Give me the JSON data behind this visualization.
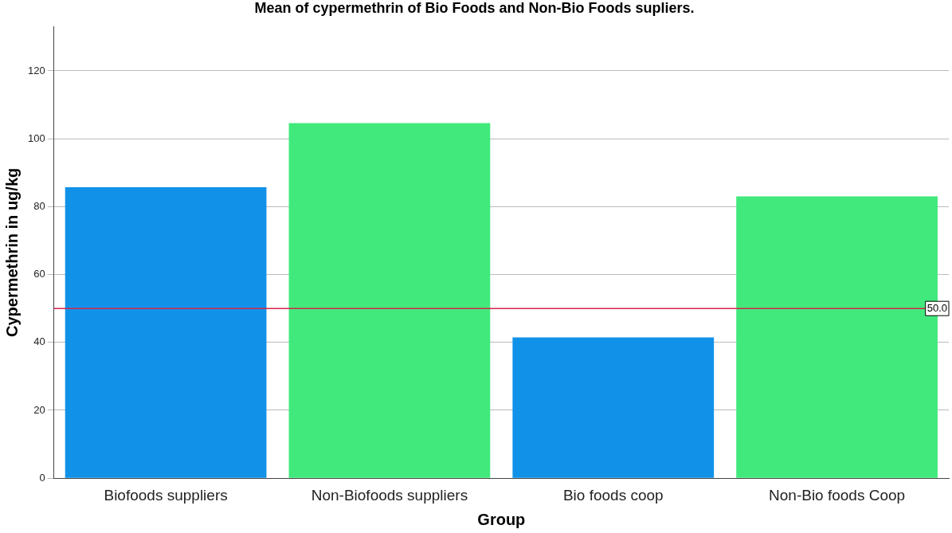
{
  "chart_data": {
    "type": "bar",
    "title": "Mean of cypermethrin of Bio Foods and Non-Bio Foods supliers.",
    "xlabel": "Group",
    "ylabel": "Cypermethrin in ug/kg",
    "categories": [
      "Biofoods suppliers",
      "Non-Biofoods suppliers",
      "Bio foods coop",
      "Non-Bio foods Coop"
    ],
    "values": [
      85.7,
      104.6,
      41.5,
      83.0
    ],
    "colors": [
      "#1192e8",
      "#41e97c",
      "#1192e8",
      "#41e97c"
    ],
    "ylim": [
      0,
      133
    ],
    "yticks": [
      0,
      20,
      40,
      60,
      80,
      100,
      120
    ],
    "grid": "y",
    "legend": false,
    "ref_lines": [
      {
        "axis": "y",
        "value": 50,
        "label": "50.0",
        "color": "#d6234a"
      }
    ]
  }
}
